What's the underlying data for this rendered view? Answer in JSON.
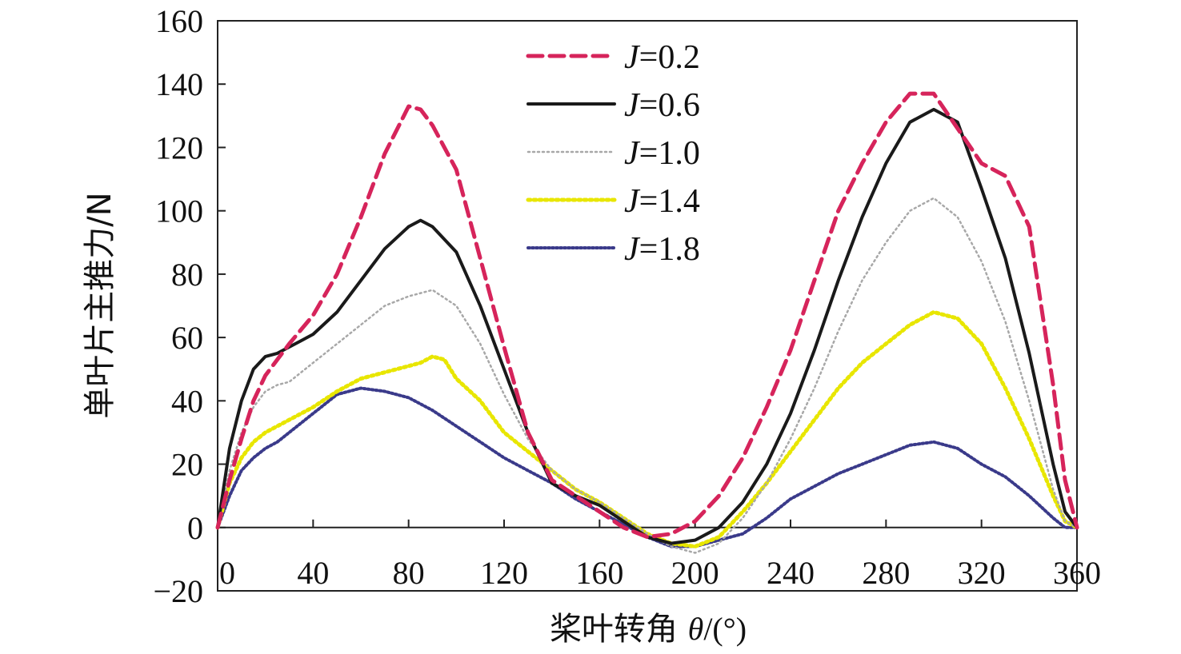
{
  "chart_data": {
    "type": "line",
    "xlabel": "桨叶转角 θ/(°)",
    "xlabel_parts": {
      "text": "桨叶转角 ",
      "symbol": "θ",
      "unit": "/(°)"
    },
    "ylabel": "单叶片主推力/N",
    "xlim": [
      0,
      360
    ],
    "ylim": [
      -20,
      160
    ],
    "x_ticks": [
      0,
      40,
      80,
      120,
      160,
      200,
      240,
      280,
      320,
      360
    ],
    "y_ticks": [
      -20,
      0,
      20,
      40,
      60,
      80,
      100,
      120,
      140,
      160
    ],
    "y_tick_labels": [
      "−20",
      "0",
      "20",
      "40",
      "60",
      "80",
      "100",
      "120",
      "140",
      "160"
    ],
    "x_tick_labels": [
      "0",
      "40",
      "80",
      "120",
      "160",
      "200",
      "240",
      "280",
      "320",
      "360"
    ],
    "grid": false,
    "legend_position": "top-center",
    "series": [
      {
        "name": "J=0.2",
        "legend_italic": "J",
        "legend_rest": "=0.2",
        "color": "#d6245b",
        "style": "dashed",
        "x": [
          0,
          5,
          10,
          15,
          20,
          25,
          30,
          40,
          50,
          60,
          70,
          80,
          85,
          90,
          100,
          110,
          120,
          130,
          140,
          150,
          160,
          170,
          180,
          190,
          200,
          210,
          220,
          230,
          240,
          250,
          260,
          270,
          280,
          290,
          300,
          310,
          320,
          330,
          340,
          350,
          355,
          360
        ],
        "y": [
          0,
          15,
          28,
          40,
          48,
          53,
          58,
          67,
          80,
          98,
          118,
          133,
          132,
          127,
          113,
          85,
          57,
          30,
          15,
          10,
          5,
          0,
          -3,
          -2,
          2,
          10,
          22,
          38,
          56,
          78,
          100,
          115,
          128,
          137,
          137,
          126,
          115,
          111,
          95,
          45,
          15,
          0
        ]
      },
      {
        "name": "J=0.6",
        "legend_italic": "J",
        "legend_rest": "=0.6",
        "color": "#1a1a1a",
        "style": "solid",
        "x": [
          0,
          5,
          10,
          15,
          20,
          25,
          30,
          35,
          40,
          50,
          60,
          70,
          80,
          85,
          90,
          100,
          110,
          120,
          130,
          140,
          150,
          160,
          170,
          180,
          190,
          200,
          210,
          220,
          230,
          240,
          250,
          260,
          270,
          280,
          290,
          300,
          310,
          320,
          330,
          340,
          350,
          355,
          360
        ],
        "y": [
          0,
          25,
          40,
          50,
          54,
          55,
          57,
          59,
          61,
          68,
          78,
          88,
          95,
          97,
          95,
          87,
          70,
          50,
          30,
          14,
          10,
          7,
          2,
          -3,
          -5,
          -4,
          0,
          8,
          20,
          36,
          56,
          78,
          98,
          115,
          128,
          132,
          128,
          107,
          85,
          55,
          20,
          5,
          0
        ]
      },
      {
        "name": "J=1.0",
        "legend_italic": "J",
        "legend_rest": "=1.0",
        "color": "#a8a8a8",
        "style": "dotted",
        "x": [
          0,
          5,
          10,
          15,
          20,
          25,
          30,
          40,
          50,
          60,
          70,
          80,
          90,
          100,
          110,
          120,
          130,
          140,
          150,
          160,
          170,
          180,
          190,
          200,
          210,
          220,
          230,
          240,
          250,
          260,
          270,
          280,
          290,
          300,
          310,
          320,
          330,
          340,
          350,
          355,
          360
        ],
        "y": [
          0,
          18,
          30,
          38,
          43,
          45,
          46,
          52,
          58,
          64,
          70,
          73,
          75,
          70,
          58,
          42,
          28,
          18,
          12,
          8,
          3,
          -2,
          -6,
          -8,
          -5,
          3,
          14,
          28,
          44,
          62,
          78,
          90,
          100,
          104,
          98,
          84,
          65,
          40,
          12,
          2,
          0
        ]
      },
      {
        "name": "J=1.4",
        "legend_italic": "J",
        "legend_rest": "=1.4",
        "color": "#e8e600",
        "style": "dotted-thick",
        "x": [
          0,
          5,
          10,
          15,
          20,
          25,
          30,
          40,
          50,
          60,
          70,
          80,
          85,
          90,
          95,
          100,
          110,
          120,
          130,
          140,
          150,
          160,
          170,
          180,
          190,
          200,
          210,
          220,
          230,
          240,
          250,
          260,
          270,
          280,
          290,
          300,
          310,
          320,
          330,
          340,
          350,
          355,
          360
        ],
        "y": [
          0,
          14,
          22,
          27,
          30,
          32,
          34,
          38,
          43,
          47,
          49,
          51,
          52,
          54,
          53,
          47,
          40,
          30,
          24,
          18,
          12,
          8,
          3,
          -2,
          -5,
          -6,
          -3,
          5,
          14,
          24,
          34,
          44,
          52,
          58,
          64,
          68,
          66,
          58,
          44,
          28,
          10,
          2,
          0
        ]
      },
      {
        "name": "J=1.8",
        "legend_italic": "J",
        "legend_rest": "=1.8",
        "color": "#3a3a8a",
        "style": "dotted-dense",
        "x": [
          0,
          5,
          10,
          15,
          20,
          25,
          30,
          40,
          50,
          60,
          70,
          80,
          90,
          100,
          110,
          120,
          130,
          140,
          150,
          160,
          170,
          180,
          190,
          200,
          210,
          220,
          230,
          240,
          250,
          260,
          270,
          280,
          290,
          300,
          310,
          320,
          330,
          340,
          350,
          355,
          360
        ],
        "y": [
          0,
          10,
          18,
          22,
          25,
          27,
          30,
          36,
          42,
          44,
          43,
          41,
          37,
          32,
          27,
          22,
          18,
          14,
          9,
          5,
          1,
          -3,
          -6,
          -6,
          -4,
          -2,
          3,
          9,
          13,
          17,
          20,
          23,
          26,
          27,
          25,
          20,
          16,
          10,
          3,
          0,
          0
        ]
      }
    ]
  }
}
